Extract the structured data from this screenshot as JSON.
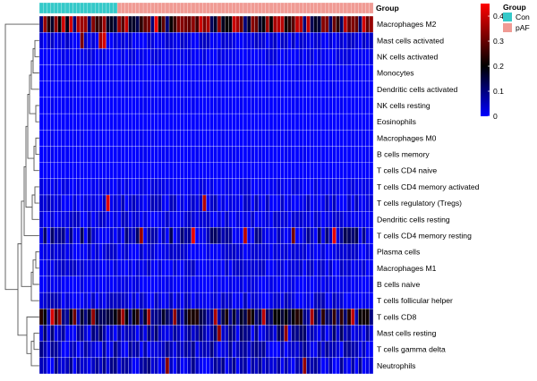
{
  "chart_data": {
    "type": "heatmap",
    "title": "",
    "n_samples": 90,
    "annotation": {
      "title": "Group",
      "groups": [
        {
          "name": "Con",
          "count": 21,
          "color": "#35c9c9"
        },
        {
          "name": "pAF",
          "count": 69,
          "color": "#f09b94"
        }
      ]
    },
    "rows": [
      "Macrophages M2",
      "Mast cells activated",
      "NK cells activated",
      "Monocytes",
      "Dendritic cells activated",
      "NK cells resting",
      "Eosinophils",
      "Macrophages M0",
      "B cells memory",
      "T cells CD4 naive",
      "T cells CD4 memory activated",
      "T cells regulatory (Tregs)",
      "Dendritic cells resting",
      "T cells CD4 memory resting",
      "Plasma cells",
      "Macrophages M1",
      "B cells naive",
      "T cells follicular helper",
      "T cells CD8",
      "Mast cells resting",
      "T cells gamma delta",
      "Neutrophils"
    ],
    "row_profiles": [
      {
        "row": "Macrophages M2",
        "base": 0.26,
        "spread": 0.16,
        "hot": [
          12,
          17,
          31,
          38,
          45,
          52,
          58,
          63,
          70,
          76,
          82,
          87
        ]
      },
      {
        "row": "Mast cells activated",
        "base": 0.02,
        "spread": 0.03,
        "hot": [
          11,
          16,
          17
        ]
      },
      {
        "row": "NK cells activated",
        "base": 0.01,
        "spread": 0.02,
        "hot": []
      },
      {
        "row": "Monocytes",
        "base": 0.0,
        "spread": 0.01,
        "hot": []
      },
      {
        "row": "Dendritic cells activated",
        "base": 0.0,
        "spread": 0.01,
        "hot": []
      },
      {
        "row": "NK cells resting",
        "base": 0.0,
        "spread": 0.01,
        "hot": []
      },
      {
        "row": "Eosinophils",
        "base": 0.0,
        "spread": 0.0,
        "hot": []
      },
      {
        "row": "Macrophages M0",
        "base": 0.0,
        "spread": 0.01,
        "hot": []
      },
      {
        "row": "B cells memory",
        "base": 0.0,
        "spread": 0.01,
        "hot": []
      },
      {
        "row": "T cells CD4 naive",
        "base": 0.0,
        "spread": 0.0,
        "hot": []
      },
      {
        "row": "T cells CD4 memory activated",
        "base": 0.01,
        "spread": 0.02,
        "hot": []
      },
      {
        "row": "T cells regulatory (Tregs)",
        "base": 0.02,
        "spread": 0.04,
        "hot": [
          18,
          44
        ]
      },
      {
        "row": "Dendritic cells resting",
        "base": 0.02,
        "spread": 0.03,
        "hot": []
      },
      {
        "row": "T cells CD4 memory resting",
        "base": 0.06,
        "spread": 0.08,
        "hot": [
          27,
          41,
          55,
          68,
          79
        ]
      },
      {
        "row": "Plasma cells",
        "base": 0.02,
        "spread": 0.03,
        "hot": []
      },
      {
        "row": "Macrophages M1",
        "base": 0.02,
        "spread": 0.03,
        "hot": []
      },
      {
        "row": "B cells naive",
        "base": 0.01,
        "spread": 0.02,
        "hot": []
      },
      {
        "row": "T cells follicular helper",
        "base": 0.02,
        "spread": 0.04,
        "hot": []
      },
      {
        "row": "T cells CD8",
        "base": 0.16,
        "spread": 0.1,
        "hot": [
          3,
          5,
          9,
          14,
          22,
          29,
          36,
          47,
          60,
          73,
          84
        ]
      },
      {
        "row": "Mast cells resting",
        "base": 0.06,
        "spread": 0.07,
        "hot": [
          48,
          66
        ]
      },
      {
        "row": "T cells gamma delta",
        "base": 0.04,
        "spread": 0.06,
        "hot": []
      },
      {
        "row": "Neutrophils",
        "base": 0.04,
        "spread": 0.06,
        "hot": [
          34,
          71
        ]
      }
    ],
    "color_scale": {
      "min": 0,
      "max": 0.45,
      "ticks": [
        0,
        0.1,
        0.2,
        0.3,
        0.4
      ],
      "tick_labels": [
        "0",
        "0.1",
        "0.2",
        "0.3",
        "0.4"
      ],
      "stops": [
        {
          "value": 0,
          "color": "#0000ff"
        },
        {
          "value": 0.2,
          "color": "#000000"
        },
        {
          "value": 0.45,
          "color": "#ff0000"
        }
      ]
    },
    "row_dendrogram": true,
    "column_dendrogram": false
  }
}
